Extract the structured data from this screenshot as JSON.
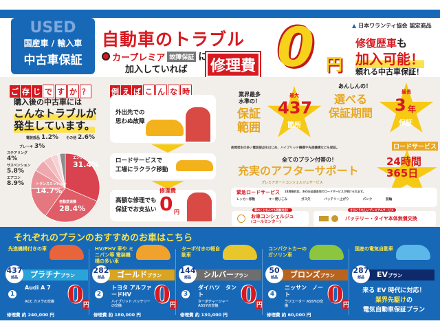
{
  "header": {
    "used_box": {
      "used": "USED",
      "line1": "国産車 / 輸入車",
      "line2": "中古車保証"
    },
    "title": "自動車のトラブル",
    "brand": "カープレミア",
    "brand_tag": "故障保証",
    "brand_suffix": "に",
    "kanyu": "加入していれば",
    "shuri": "修理費",
    "zero": "0",
    "yen": "円",
    "association": "日本ワランティ協会",
    "certified": "認定商品",
    "right1_a": "修復歴車",
    "right1_b": "も",
    "right2": "加入可能！",
    "right3": "頼れる中古車保証！"
  },
  "left": {
    "badge_chars": [
      "ご",
      "存",
      "じ"
    ],
    "badge_outline": [
      "で",
      "す",
      "か",
      "？"
    ],
    "text1": "購入後の中古車には",
    "text2": "こんなトラブルが",
    "text3": "発生しています。"
  },
  "chart_data": {
    "type": "pie",
    "start": "top",
    "direction": "clockwise",
    "slices": [
      {
        "label": "エンジン",
        "value": 31.4,
        "color": "#d9434f"
      },
      {
        "label": "自動変速機",
        "value": 28.4,
        "color": "#e05c66"
      },
      {
        "label": "トランスミッション",
        "value": 14.7,
        "color": "#e57780"
      },
      {
        "label": "エアコン",
        "value": 8.9,
        "color": "#ea9198"
      },
      {
        "label": "サスペンション",
        "value": 5.8,
        "color": "#efa9ae"
      },
      {
        "label": "ステアリング",
        "value": 4,
        "color": "#f3bfc2"
      },
      {
        "label": "ブレーキ",
        "value": 3,
        "color": "#f6d2d4"
      },
      {
        "label": "電装部品",
        "value": 1.2,
        "color": "#f9e3e4"
      },
      {
        "label": "その他",
        "value": 2.6,
        "color": "#8c8c8c"
      }
    ],
    "value_labels": [
      "31.4%",
      "28.4%",
      "14.7%",
      "8.9%",
      "5.8%",
      "4%",
      "3%",
      "1.2%",
      "2.6%"
    ]
  },
  "middle": {
    "badge_chars": [
      "例",
      "え",
      "ば"
    ],
    "badge_outline": [
      "こ",
      "ん",
      "な",
      "時"
    ],
    "step1": [
      "外出先での",
      "思わぬ故障"
    ],
    "step2": [
      "ロードサービスで",
      "工場にラクラク移動"
    ],
    "step3": [
      "高額な修理でも",
      "保証でお支払い"
    ],
    "step3_label": "修理費",
    "step3_zero": "0",
    "step3_yen": "円"
  },
  "features": {
    "f1_pre": [
      "業界最多",
      "水準の！"
    ],
    "f1_main": [
      "保証",
      "範囲"
    ],
    "f1_star_top": "最大",
    "f1_star_num": "437",
    "f1_star_unit": "箇所",
    "f1_note": "故障発生の多い電装部品をはじめ、ハイブリッド機構や先進機構なども保証。",
    "f2_pre": "あんしんの！",
    "f2_main": [
      "選べる",
      "保証期間"
    ],
    "f3_star_top": "最長",
    "f3_star_num": "3",
    "f3_star_unit": "年",
    "f3_star_sub": "保証",
    "road_label": "ロードサービス",
    "road_24": "24時間",
    "road_365": "365日"
  },
  "support": {
    "pre": "全てのプラン付帯の！",
    "title": "充実のアフターサポート",
    "sub": "プレミアオートコンシェルジュサービス",
    "emergency": "緊急ロードサービス",
    "emergency_note": "24時間対応、365日全国各地でロードサービスが受けられます。",
    "services": [
      "レッカー移動",
      "キー閉じこみ",
      "ガス欠",
      "バッテリー上がり",
      "パンク",
      "脱輪"
    ],
    "concierge_tag": "車のことなんでも相談対応！",
    "concierge": "お車コンシェルジュ",
    "concierge_sub": "(コールセンター)",
    "premium_tag": "さらにうれしいプレミアムサービス",
    "battery": "バッテリー・タイヤ本体無償交換"
  },
  "plans": {
    "title": "それぞれのプランのおすすめのお車はこちら",
    "items": [
      {
        "caption": "先進機構付きの車",
        "num": "437",
        "unit": "部品",
        "name": "プラチナ",
        "suffix": "プラン",
        "color": "#2aa3d9",
        "rank": "1",
        "car": "Audi A 7",
        "note": "ACC カメラの交換",
        "price": "修理費 約 240,000 円",
        "zero": "0",
        "yen": "円",
        "car_color": "#e8643a"
      },
      {
        "caption": "HV/PHV 車や ミニバン等 電装機構の多い車",
        "num": "282",
        "unit": "部品",
        "name": "ゴールド",
        "suffix": "プラン",
        "color": "#d9a521",
        "rank": "2",
        "car": "トヨタ アルファードHV",
        "note": "ハイブリッド バッテリーの交換",
        "price": "修理費 約 180,000 円",
        "zero": "0",
        "yen": "円",
        "car_color": "#f0a22c"
      },
      {
        "caption": "ターボ付きの軽自動車",
        "num": "144",
        "unit": "部品",
        "name": "シルバー",
        "suffix": "プラン",
        "color": "#6e6e6e",
        "rank": "3",
        "car": "ダイハツ　タント",
        "note": "ターボチャージャー ASSYの交換",
        "price": "修理費 約 130,000 円",
        "zero": "0",
        "yen": "円",
        "car_color": "#e8c72c"
      },
      {
        "caption": "コンパクトカーの ガソリン車",
        "num": "50",
        "unit": "部品",
        "name": "ブロンズ",
        "suffix": "プラン",
        "color": "#b8641f",
        "rank": "4",
        "car": "ニッサン　ノート",
        "note": "ラジエーター ASSYの交換",
        "price": "修理費 約 60,000 円",
        "zero": "0",
        "yen": "円",
        "car_color": "#8cc63f"
      },
      {
        "caption": "国産の電気自動車",
        "num": "287",
        "unit": "部品",
        "name": "EV",
        "suffix": "プラン",
        "color": "#0d2a6b",
        "car_color": "#5bb8e8"
      }
    ],
    "ev_text1": "来る EV 時代に対応！",
    "ev_text2a": "業界先駆け",
    "ev_text2b": "の",
    "ev_text3": "電気自動車保証プラン"
  }
}
